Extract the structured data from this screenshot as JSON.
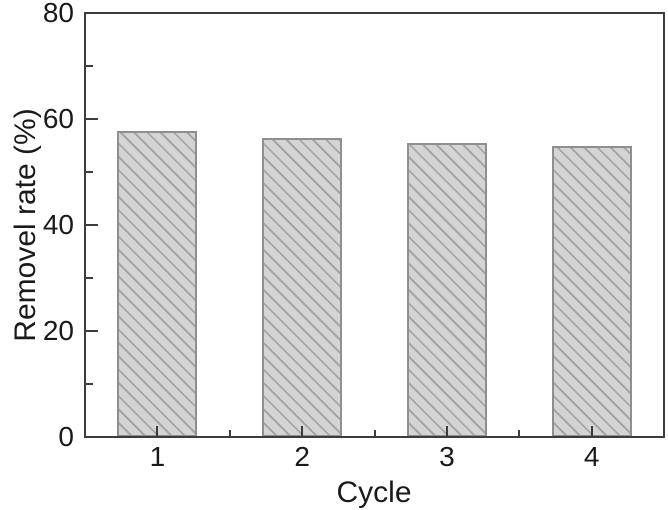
{
  "chart_data": {
    "type": "bar",
    "categories": [
      "1",
      "2",
      "3",
      "4"
    ],
    "values": [
      57.8,
      56.4,
      55.5,
      54.9
    ],
    "title": "",
    "xlabel": "Cycle",
    "ylabel": "Removel rate (%)",
    "ylim": [
      0,
      80
    ],
    "ytick_major": [
      0,
      20,
      40,
      60,
      80
    ],
    "ytick_minor": [
      10,
      30,
      50,
      70
    ],
    "xtick_minor_between_categories": true,
    "bar_width_fraction": 0.55,
    "grid": false,
    "legend": false,
    "style": {
      "background": "#ffffff",
      "frame_color": "#3c3c3c",
      "text_color": "#1a1a1a",
      "bar_fill": "#d4d4d4",
      "bar_hatch_color": "#a6a6a6",
      "bar_border": "#8f8f8f",
      "hatch_direction": "backslash"
    }
  }
}
